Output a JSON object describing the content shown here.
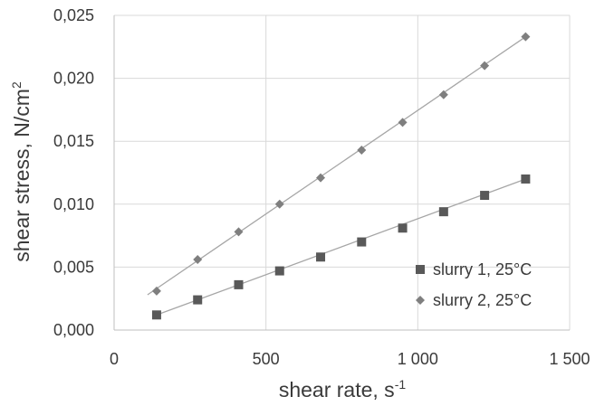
{
  "chart_data": {
    "type": "scatter",
    "title": "",
    "xlabel": "shear rate, s",
    "xlabel_sup": "-1",
    "ylabel": "shear stress, N/cm",
    "ylabel_sup": "2",
    "xlim": [
      0,
      1500
    ],
    "ylim": [
      0,
      0.025
    ],
    "xticks": [
      0,
      500,
      1000,
      1500
    ],
    "xtick_labels": [
      "0",
      "500",
      "1 000",
      "1 500"
    ],
    "yticks": [
      0,
      0.005,
      0.01,
      0.015,
      0.02,
      0.025
    ],
    "ytick_labels": [
      "0,000",
      "0,005",
      "0,010",
      "0,015",
      "0,020",
      "0,025"
    ],
    "grid": true,
    "legend_position": "bottom-right",
    "series": [
      {
        "name": "slurry 1, 25°C",
        "marker": "square",
        "color": "#595959",
        "x": [
          140,
          275,
          410,
          545,
          680,
          815,
          950,
          1085,
          1220,
          1355
        ],
        "y": [
          0.0012,
          0.0024,
          0.0036,
          0.0047,
          0.0058,
          0.007,
          0.0081,
          0.0094,
          0.0107,
          0.012
        ],
        "trendline": {
          "x": [
            140,
            1355
          ],
          "y": [
            0.0012,
            0.012
          ]
        }
      },
      {
        "name": "slurry 2, 25°C",
        "marker": "diamond",
        "color": "#7f7f7f",
        "x": [
          140,
          275,
          410,
          545,
          680,
          815,
          950,
          1085,
          1220,
          1355
        ],
        "y": [
          0.0031,
          0.0056,
          0.0078,
          0.01,
          0.0121,
          0.0143,
          0.0165,
          0.0187,
          0.021,
          0.0233
        ],
        "trendline": {
          "x": [
            110,
            1355
          ],
          "y": [
            0.0028,
            0.0233
          ]
        }
      }
    ]
  }
}
